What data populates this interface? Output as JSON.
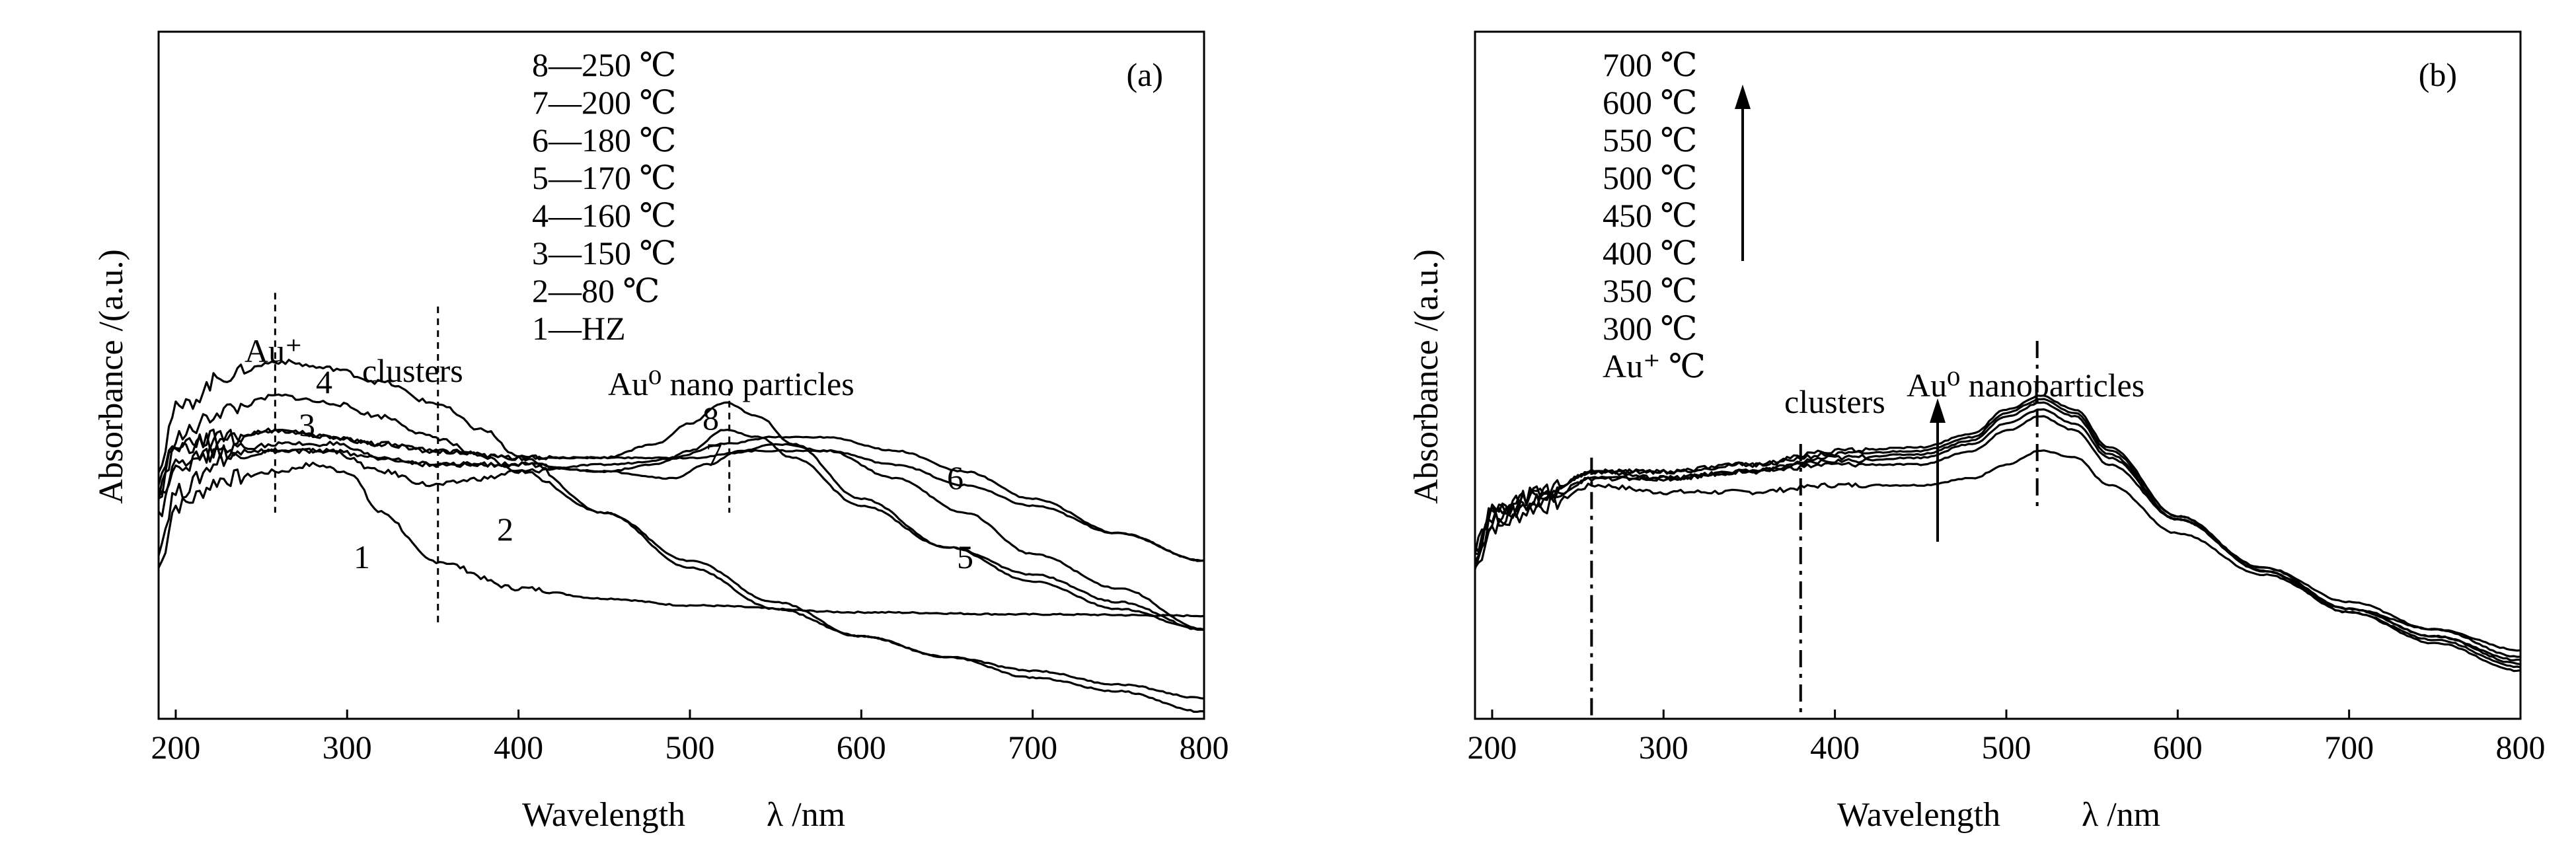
{
  "chart_data": [
    {
      "type": "line",
      "panel_label": "(a)",
      "xlabel": "Wavelength",
      "xlabel_symbol": "λ /nm",
      "ylabel": "Absorbance /(a.u.)",
      "xlim": [
        190,
        800
      ],
      "ylim": [
        0,
        1
      ],
      "x_ticks": [
        200,
        300,
        400,
        500,
        600,
        700,
        800
      ],
      "legend": [
        "8—250 ℃",
        "7—200 ℃",
        "6—180 ℃",
        "5—170 ℃",
        "4—160 ℃",
        "3—150 ℃",
        "2—80 ℃",
        "1—HZ"
      ],
      "annotations": [
        {
          "text": "Au⁺",
          "x": 258
        },
        {
          "text": "clusters",
          "x": 353
        },
        {
          "text": "Au⁰ nano particles",
          "x": 523
        }
      ],
      "guide_lines_x": [
        258,
        353,
        523
      ],
      "series": [
        {
          "label": "1",
          "points": [
            [
              190,
              0.22
            ],
            [
              200,
              0.31
            ],
            [
              230,
              0.35
            ],
            [
              260,
              0.36
            ],
            [
              280,
              0.37
            ],
            [
              300,
              0.36
            ],
            [
              320,
              0.3
            ],
            [
              350,
              0.23
            ],
            [
              400,
              0.19
            ],
            [
              450,
              0.175
            ],
            [
              500,
              0.165
            ],
            [
              600,
              0.155
            ],
            [
              700,
              0.152
            ],
            [
              800,
              0.15
            ]
          ]
        },
        {
          "label": "2",
          "points": [
            [
              190,
              0.25
            ],
            [
              200,
              0.33
            ],
            [
              230,
              0.38
            ],
            [
              260,
              0.39
            ],
            [
              290,
              0.39
            ],
            [
              320,
              0.36
            ],
            [
              350,
              0.34
            ],
            [
              380,
              0.35
            ],
            [
              400,
              0.36
            ],
            [
              450,
              0.37
            ],
            [
              500,
              0.38
            ],
            [
              540,
              0.39
            ],
            [
              580,
              0.39
            ],
            [
              620,
              0.37
            ],
            [
              660,
              0.34
            ],
            [
              700,
              0.31
            ],
            [
              750,
              0.27
            ],
            [
              800,
              0.23
            ]
          ]
        },
        {
          "label": "3",
          "points": [
            [
              190,
              0.32
            ],
            [
              200,
              0.41
            ],
            [
              230,
              0.45
            ],
            [
              260,
              0.47
            ],
            [
              290,
              0.46
            ],
            [
              320,
              0.44
            ],
            [
              350,
              0.41
            ],
            [
              380,
              0.38
            ],
            [
              400,
              0.36
            ],
            [
              450,
              0.3
            ],
            [
              500,
              0.23
            ],
            [
              550,
              0.17
            ],
            [
              600,
              0.12
            ],
            [
              650,
              0.09
            ],
            [
              700,
              0.06
            ],
            [
              750,
              0.04
            ],
            [
              800,
              0.01
            ]
          ]
        },
        {
          "label": "4",
          "points": [
            [
              190,
              0.37
            ],
            [
              200,
              0.45
            ],
            [
              230,
              0.5
            ],
            [
              260,
              0.52
            ],
            [
              290,
              0.51
            ],
            [
              320,
              0.49
            ],
            [
              350,
              0.46
            ],
            [
              380,
              0.42
            ],
            [
              400,
              0.38
            ],
            [
              450,
              0.3
            ],
            [
              500,
              0.22
            ],
            [
              550,
              0.16
            ],
            [
              600,
              0.12
            ],
            [
              650,
              0.09
            ],
            [
              700,
              0.07
            ],
            [
              750,
              0.05
            ],
            [
              800,
              0.03
            ]
          ]
        },
        {
          "label": "5",
          "points": [
            [
              190,
              0.3
            ],
            [
              200,
              0.37
            ],
            [
              230,
              0.39
            ],
            [
              260,
              0.39
            ],
            [
              290,
              0.39
            ],
            [
              320,
              0.38
            ],
            [
              350,
              0.37
            ],
            [
              400,
              0.37
            ],
            [
              450,
              0.36
            ],
            [
              490,
              0.35
            ],
            [
              510,
              0.37
            ],
            [
              530,
              0.39
            ],
            [
              550,
              0.4
            ],
            [
              580,
              0.39
            ],
            [
              620,
              0.35
            ],
            [
              660,
              0.3
            ],
            [
              700,
              0.24
            ],
            [
              750,
              0.19
            ],
            [
              800,
              0.13
            ]
          ]
        },
        {
          "label": "6",
          "points": [
            [
              190,
              0.33
            ],
            [
              200,
              0.39
            ],
            [
              230,
              0.41
            ],
            [
              260,
              0.42
            ],
            [
              290,
              0.41
            ],
            [
              320,
              0.4
            ],
            [
              350,
              0.39
            ],
            [
              400,
              0.38
            ],
            [
              450,
              0.38
            ],
            [
              490,
              0.38
            ],
            [
              520,
              0.4
            ],
            [
              550,
              0.41
            ],
            [
              580,
              0.41
            ],
            [
              620,
              0.39
            ],
            [
              660,
              0.36
            ],
            [
              700,
              0.32
            ],
            [
              750,
              0.27
            ],
            [
              800,
              0.23
            ]
          ]
        },
        {
          "label": "7",
          "points": [
            [
              190,
              0.32
            ],
            [
              200,
              0.37
            ],
            [
              230,
              0.39
            ],
            [
              260,
              0.4
            ],
            [
              290,
              0.4
            ],
            [
              320,
              0.38
            ],
            [
              350,
              0.37
            ],
            [
              400,
              0.37
            ],
            [
              450,
              0.36
            ],
            [
              480,
              0.37
            ],
            [
              500,
              0.39
            ],
            [
              520,
              0.42
            ],
            [
              540,
              0.41
            ],
            [
              560,
              0.38
            ],
            [
              600,
              0.31
            ],
            [
              650,
              0.25
            ],
            [
              700,
              0.21
            ],
            [
              750,
              0.17
            ],
            [
              800,
              0.13
            ]
          ]
        },
        {
          "label": "8",
          "points": [
            [
              190,
              0.35
            ],
            [
              200,
              0.4
            ],
            [
              230,
              0.41
            ],
            [
              260,
              0.42
            ],
            [
              290,
              0.41
            ],
            [
              320,
              0.4
            ],
            [
              350,
              0.39
            ],
            [
              400,
              0.38
            ],
            [
              450,
              0.38
            ],
            [
              480,
              0.4
            ],
            [
              500,
              0.43
            ],
            [
              520,
              0.46
            ],
            [
              540,
              0.44
            ],
            [
              560,
              0.4
            ],
            [
              600,
              0.32
            ],
            [
              650,
              0.25
            ],
            [
              700,
              0.2
            ],
            [
              750,
              0.16
            ],
            [
              800,
              0.13
            ]
          ]
        }
      ]
    },
    {
      "type": "line",
      "panel_label": "(b)",
      "xlabel": "Wavelength",
      "xlabel_symbol": "λ /nm",
      "ylabel": "Absorbance /(a.u.)",
      "xlim": [
        190,
        800
      ],
      "ylim": [
        0,
        1
      ],
      "x_ticks": [
        200,
        300,
        400,
        500,
        600,
        700,
        800
      ],
      "legend": [
        "700 ℃",
        "600 ℃",
        "550 ℃",
        "500 ℃",
        "450 ℃",
        "400 ℃",
        "350 ℃",
        "300 ℃",
        "Au⁺ ℃"
      ],
      "annotations": [
        {
          "text": "clusters",
          "x": 380
        },
        {
          "text": "Au⁰ nanoparticles",
          "x": 518
        }
      ],
      "guide_lines_x": [
        258,
        380,
        518
      ],
      "series": [
        {
          "label": "Au⁺",
          "points": [
            [
              190,
              0.22
            ],
            [
              200,
              0.28
            ],
            [
              230,
              0.31
            ],
            [
              260,
              0.34
            ],
            [
              300,
              0.33
            ],
            [
              350,
              0.33
            ],
            [
              400,
              0.34
            ],
            [
              450,
              0.34
            ],
            [
              480,
              0.35
            ],
            [
              500,
              0.37
            ],
            [
              520,
              0.39
            ],
            [
              540,
              0.38
            ],
            [
              560,
              0.34
            ],
            [
              600,
              0.27
            ],
            [
              650,
              0.21
            ],
            [
              700,
              0.16
            ],
            [
              750,
              0.13
            ],
            [
              800,
              0.1
            ]
          ]
        },
        {
          "label": "300 ℃",
          "points": [
            [
              190,
              0.23
            ],
            [
              200,
              0.29
            ],
            [
              230,
              0.32
            ],
            [
              260,
              0.35
            ],
            [
              300,
              0.35
            ],
            [
              350,
              0.36
            ],
            [
              400,
              0.37
            ],
            [
              450,
              0.37
            ],
            [
              480,
              0.39
            ],
            [
              500,
              0.42
            ],
            [
              520,
              0.44
            ],
            [
              540,
              0.42
            ],
            [
              560,
              0.37
            ],
            [
              600,
              0.29
            ],
            [
              650,
              0.22
            ],
            [
              700,
              0.17
            ],
            [
              750,
              0.13
            ],
            [
              800,
              0.09
            ]
          ]
        },
        {
          "label": "350 ℃",
          "points": [
            [
              190,
              0.24
            ],
            [
              200,
              0.29
            ],
            [
              230,
              0.32
            ],
            [
              260,
              0.35
            ],
            [
              300,
              0.35
            ],
            [
              350,
              0.36
            ],
            [
              400,
              0.375
            ],
            [
              450,
              0.38
            ],
            [
              480,
              0.4
            ],
            [
              500,
              0.43
            ],
            [
              520,
              0.45
            ],
            [
              540,
              0.43
            ],
            [
              560,
              0.38
            ],
            [
              600,
              0.29
            ],
            [
              650,
              0.22
            ],
            [
              700,
              0.16
            ],
            [
              750,
              0.12
            ],
            [
              800,
              0.085
            ]
          ]
        },
        {
          "label": "400 ℃",
          "points": [
            [
              190,
              0.24
            ],
            [
              200,
              0.3
            ],
            [
              230,
              0.33
            ],
            [
              260,
              0.36
            ],
            [
              300,
              0.35
            ],
            [
              350,
              0.36
            ],
            [
              400,
              0.38
            ],
            [
              450,
              0.385
            ],
            [
              480,
              0.405
            ],
            [
              500,
              0.44
            ],
            [
              520,
              0.46
            ],
            [
              540,
              0.44
            ],
            [
              560,
              0.385
            ],
            [
              600,
              0.29
            ],
            [
              650,
              0.215
            ],
            [
              700,
              0.16
            ],
            [
              750,
              0.12
            ],
            [
              800,
              0.08
            ]
          ]
        },
        {
          "label": "450 ℃",
          "points": [
            [
              190,
              0.25
            ],
            [
              200,
              0.3
            ],
            [
              230,
              0.33
            ],
            [
              260,
              0.36
            ],
            [
              300,
              0.36
            ],
            [
              350,
              0.37
            ],
            [
              400,
              0.385
            ],
            [
              450,
              0.39
            ],
            [
              480,
              0.41
            ],
            [
              500,
              0.445
            ],
            [
              520,
              0.465
            ],
            [
              540,
              0.445
            ],
            [
              560,
              0.39
            ],
            [
              600,
              0.295
            ],
            [
              650,
              0.215
            ],
            [
              700,
              0.155
            ],
            [
              750,
              0.115
            ],
            [
              800,
              0.075
            ]
          ]
        },
        {
          "label": "500 ℃",
          "points": [
            [
              190,
              0.25
            ],
            [
              200,
              0.3
            ],
            [
              230,
              0.33
            ],
            [
              260,
              0.36
            ],
            [
              300,
              0.36
            ],
            [
              350,
              0.37
            ],
            [
              400,
              0.39
            ],
            [
              450,
              0.395
            ],
            [
              480,
              0.415
            ],
            [
              500,
              0.45
            ],
            [
              520,
              0.47
            ],
            [
              540,
              0.45
            ],
            [
              560,
              0.395
            ],
            [
              600,
              0.295
            ],
            [
              650,
              0.215
            ],
            [
              700,
              0.155
            ],
            [
              750,
              0.11
            ],
            [
              800,
              0.07
            ]
          ]
        }
      ]
    }
  ]
}
